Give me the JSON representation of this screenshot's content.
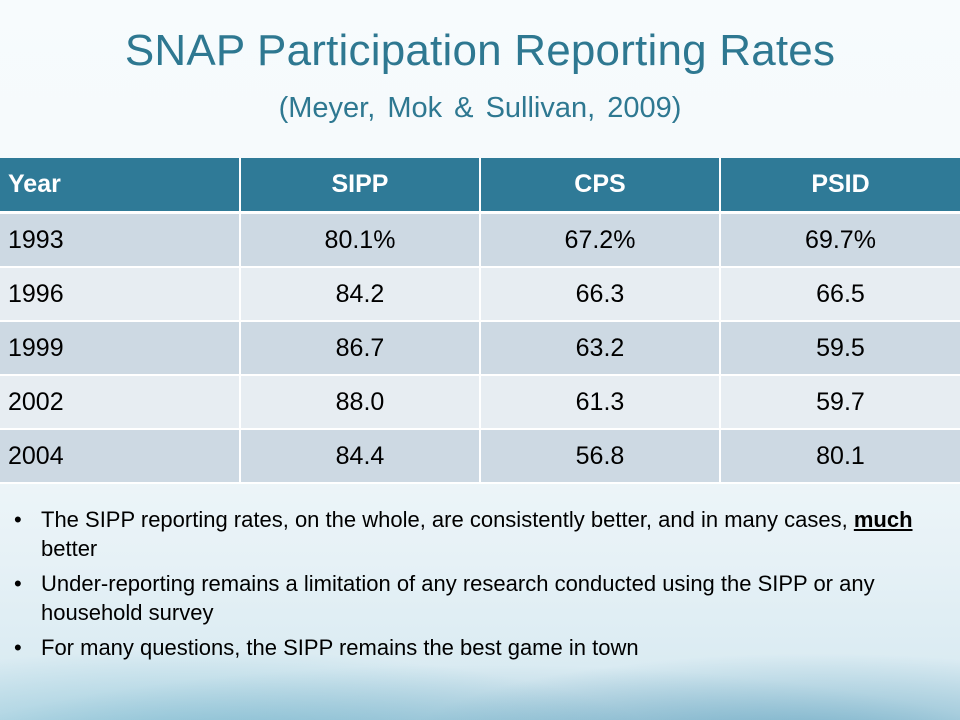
{
  "slide": {
    "title": "SNAP Participation Reporting Rates",
    "subtitle": "(Meyer, Mok & Sullivan, 2009)"
  },
  "table": {
    "headers": [
      "Year",
      "SIPP",
      "CPS",
      "PSID"
    ],
    "rows": [
      [
        "1993",
        "80.1%",
        "67.2%",
        "69.7%"
      ],
      [
        "1996",
        "84.2",
        "66.3",
        "66.5"
      ],
      [
        "1999",
        "86.7",
        "63.2",
        "59.5"
      ],
      [
        "2002",
        "88.0",
        "61.3",
        "59.7"
      ],
      [
        "2004",
        "84.4",
        "56.8",
        "80.1"
      ]
    ]
  },
  "bullets": {
    "b1_before": "The SIPP reporting rates, on the whole, are consistently better, and in many cases, ",
    "b1_emph": "much",
    "b1_after": " better",
    "b2": "Under-reporting remains a limitation of any research conducted using the SIPP or any household survey",
    "b3": "For many questions, the SIPP remains the best game in town"
  },
  "colors": {
    "title": "#2e7891",
    "header_bg": "#2f7a97",
    "row_dark": "#cdd9e3",
    "row_light": "#e7edf2"
  }
}
